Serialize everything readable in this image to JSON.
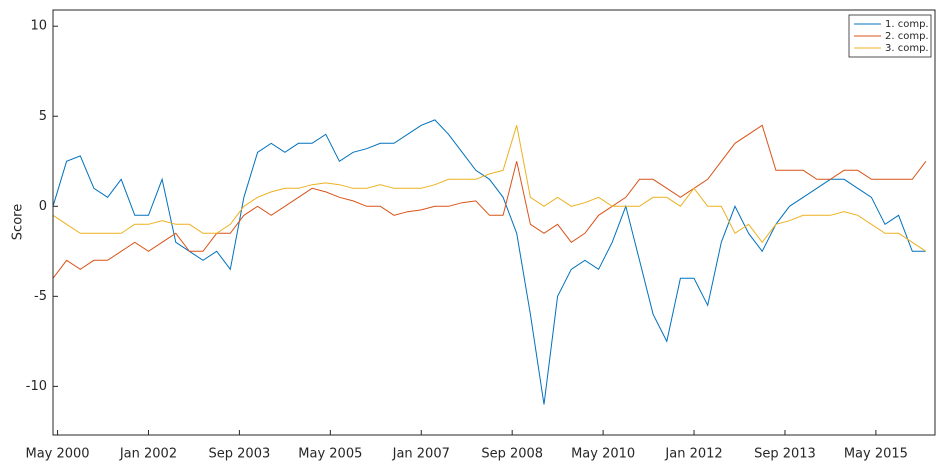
{
  "chart_data": {
    "type": "line",
    "y_label": "Score",
    "x": [
      "2000-04",
      "2000-07",
      "2000-10",
      "2001-01",
      "2001-04",
      "2001-07",
      "2001-10",
      "2002-01",
      "2002-04",
      "2002-07",
      "2002-10",
      "2003-01",
      "2003-04",
      "2003-07",
      "2003-10",
      "2004-01",
      "2004-04",
      "2004-07",
      "2004-10",
      "2005-01",
      "2005-04",
      "2005-07",
      "2005-10",
      "2006-01",
      "2006-04",
      "2006-07",
      "2006-10",
      "2007-01",
      "2007-04",
      "2007-07",
      "2007-10",
      "2008-01",
      "2008-04",
      "2008-07",
      "2008-10",
      "2009-01",
      "2009-04",
      "2009-07",
      "2009-10",
      "2010-01",
      "2010-04",
      "2010-07",
      "2010-10",
      "2011-01",
      "2011-04",
      "2011-07",
      "2011-10",
      "2012-01",
      "2012-04",
      "2012-07",
      "2012-10",
      "2013-01",
      "2013-04",
      "2013-07",
      "2013-10",
      "2014-01",
      "2014-04",
      "2014-07",
      "2014-10",
      "2015-01",
      "2015-04",
      "2015-07",
      "2015-10",
      "2016-01",
      "2016-04"
    ],
    "series": [
      {
        "name": "1. comp.",
        "color": "#0072bd",
        "values": [
          0,
          2.5,
          2.8,
          1,
          0.5,
          1.5,
          -0.5,
          -0.5,
          1.5,
          -2,
          -2.5,
          -3,
          -2.5,
          -3.5,
          0.5,
          3,
          3.5,
          3,
          3.5,
          3.5,
          4,
          2.5,
          3,
          3.2,
          3.5,
          3.5,
          4,
          4.5,
          4.8,
          4,
          3,
          2,
          1.5,
          0.5,
          -1.5,
          -6,
          -11,
          -5,
          -3.5,
          -3,
          -3.5,
          -2,
          0,
          -3,
          -6,
          -7.5,
          -4,
          -4,
          -5.5,
          -2,
          0,
          -1.5,
          -2.5,
          -1,
          0,
          0.5,
          1,
          1.5,
          1.5,
          1,
          0.5,
          -1,
          -0.5,
          -2.5,
          -2.5
        ]
      },
      {
        "name": "2. comp.",
        "color": "#d95319",
        "values": [
          -4,
          -3,
          -3.5,
          -3,
          -3,
          -2.5,
          -2,
          -2.5,
          -2,
          -1.5,
          -2.5,
          -2.5,
          -1.5,
          -1.5,
          -0.5,
          0,
          -0.5,
          0,
          0.5,
          1,
          0.8,
          0.5,
          0.3,
          0,
          0,
          -0.5,
          -0.3,
          -0.2,
          0,
          0,
          0.2,
          0.3,
          -0.5,
          -0.5,
          2.5,
          -1,
          -1.5,
          -1,
          -2,
          -1.5,
          -0.5,
          0,
          0.5,
          1.5,
          1.5,
          1,
          0.5,
          1,
          1.5,
          2.5,
          3.5,
          4,
          4.5,
          2,
          2,
          2,
          1.5,
          1.5,
          2,
          2,
          1.5,
          1.5,
          1.5,
          1.5,
          2.5
        ]
      },
      {
        "name": "3. comp.",
        "color": "#edb120",
        "values": [
          -0.5,
          -1,
          -1.5,
          -1.5,
          -1.5,
          -1.5,
          -1,
          -1,
          -0.8,
          -1,
          -1,
          -1.5,
          -1.5,
          -1,
          0,
          0.5,
          0.8,
          1,
          1,
          1.2,
          1.3,
          1.2,
          1,
          1,
          1.2,
          1,
          1,
          1,
          1.2,
          1.5,
          1.5,
          1.5,
          1.8,
          2,
          4.5,
          0.5,
          0,
          0.5,
          0,
          0.2,
          0.5,
          0,
          0,
          0,
          0.5,
          0.5,
          0,
          1,
          0,
          0,
          -1.5,
          -1,
          -2,
          -1,
          -0.8,
          -0.5,
          -0.5,
          -0.5,
          -0.3,
          -0.5,
          -1,
          -1.5,
          -1.5,
          -2,
          -2.5
        ]
      }
    ],
    "xlim": [
      "2000-04",
      "2016-06"
    ],
    "xticks": [
      {
        "value": "2000-05",
        "label": "May 2000"
      },
      {
        "value": "2002-01",
        "label": "Jan 2002"
      },
      {
        "value": "2003-09",
        "label": "Sep 2003"
      },
      {
        "value": "2005-05",
        "label": "May 2005"
      },
      {
        "value": "2007-01",
        "label": "Jan 2007"
      },
      {
        "value": "2008-09",
        "label": "Sep 2008"
      },
      {
        "value": "2010-05",
        "label": "May 2010"
      },
      {
        "value": "2012-01",
        "label": "Jan 2012"
      },
      {
        "value": "2013-09",
        "label": "Sep 2013"
      },
      {
        "value": "2015-05",
        "label": "May 2015"
      }
    ],
    "ylim": [
      -12.7,
      10.9
    ],
    "yticks": [
      -10,
      -5,
      0,
      5,
      10
    ],
    "legend": "upper right"
  }
}
